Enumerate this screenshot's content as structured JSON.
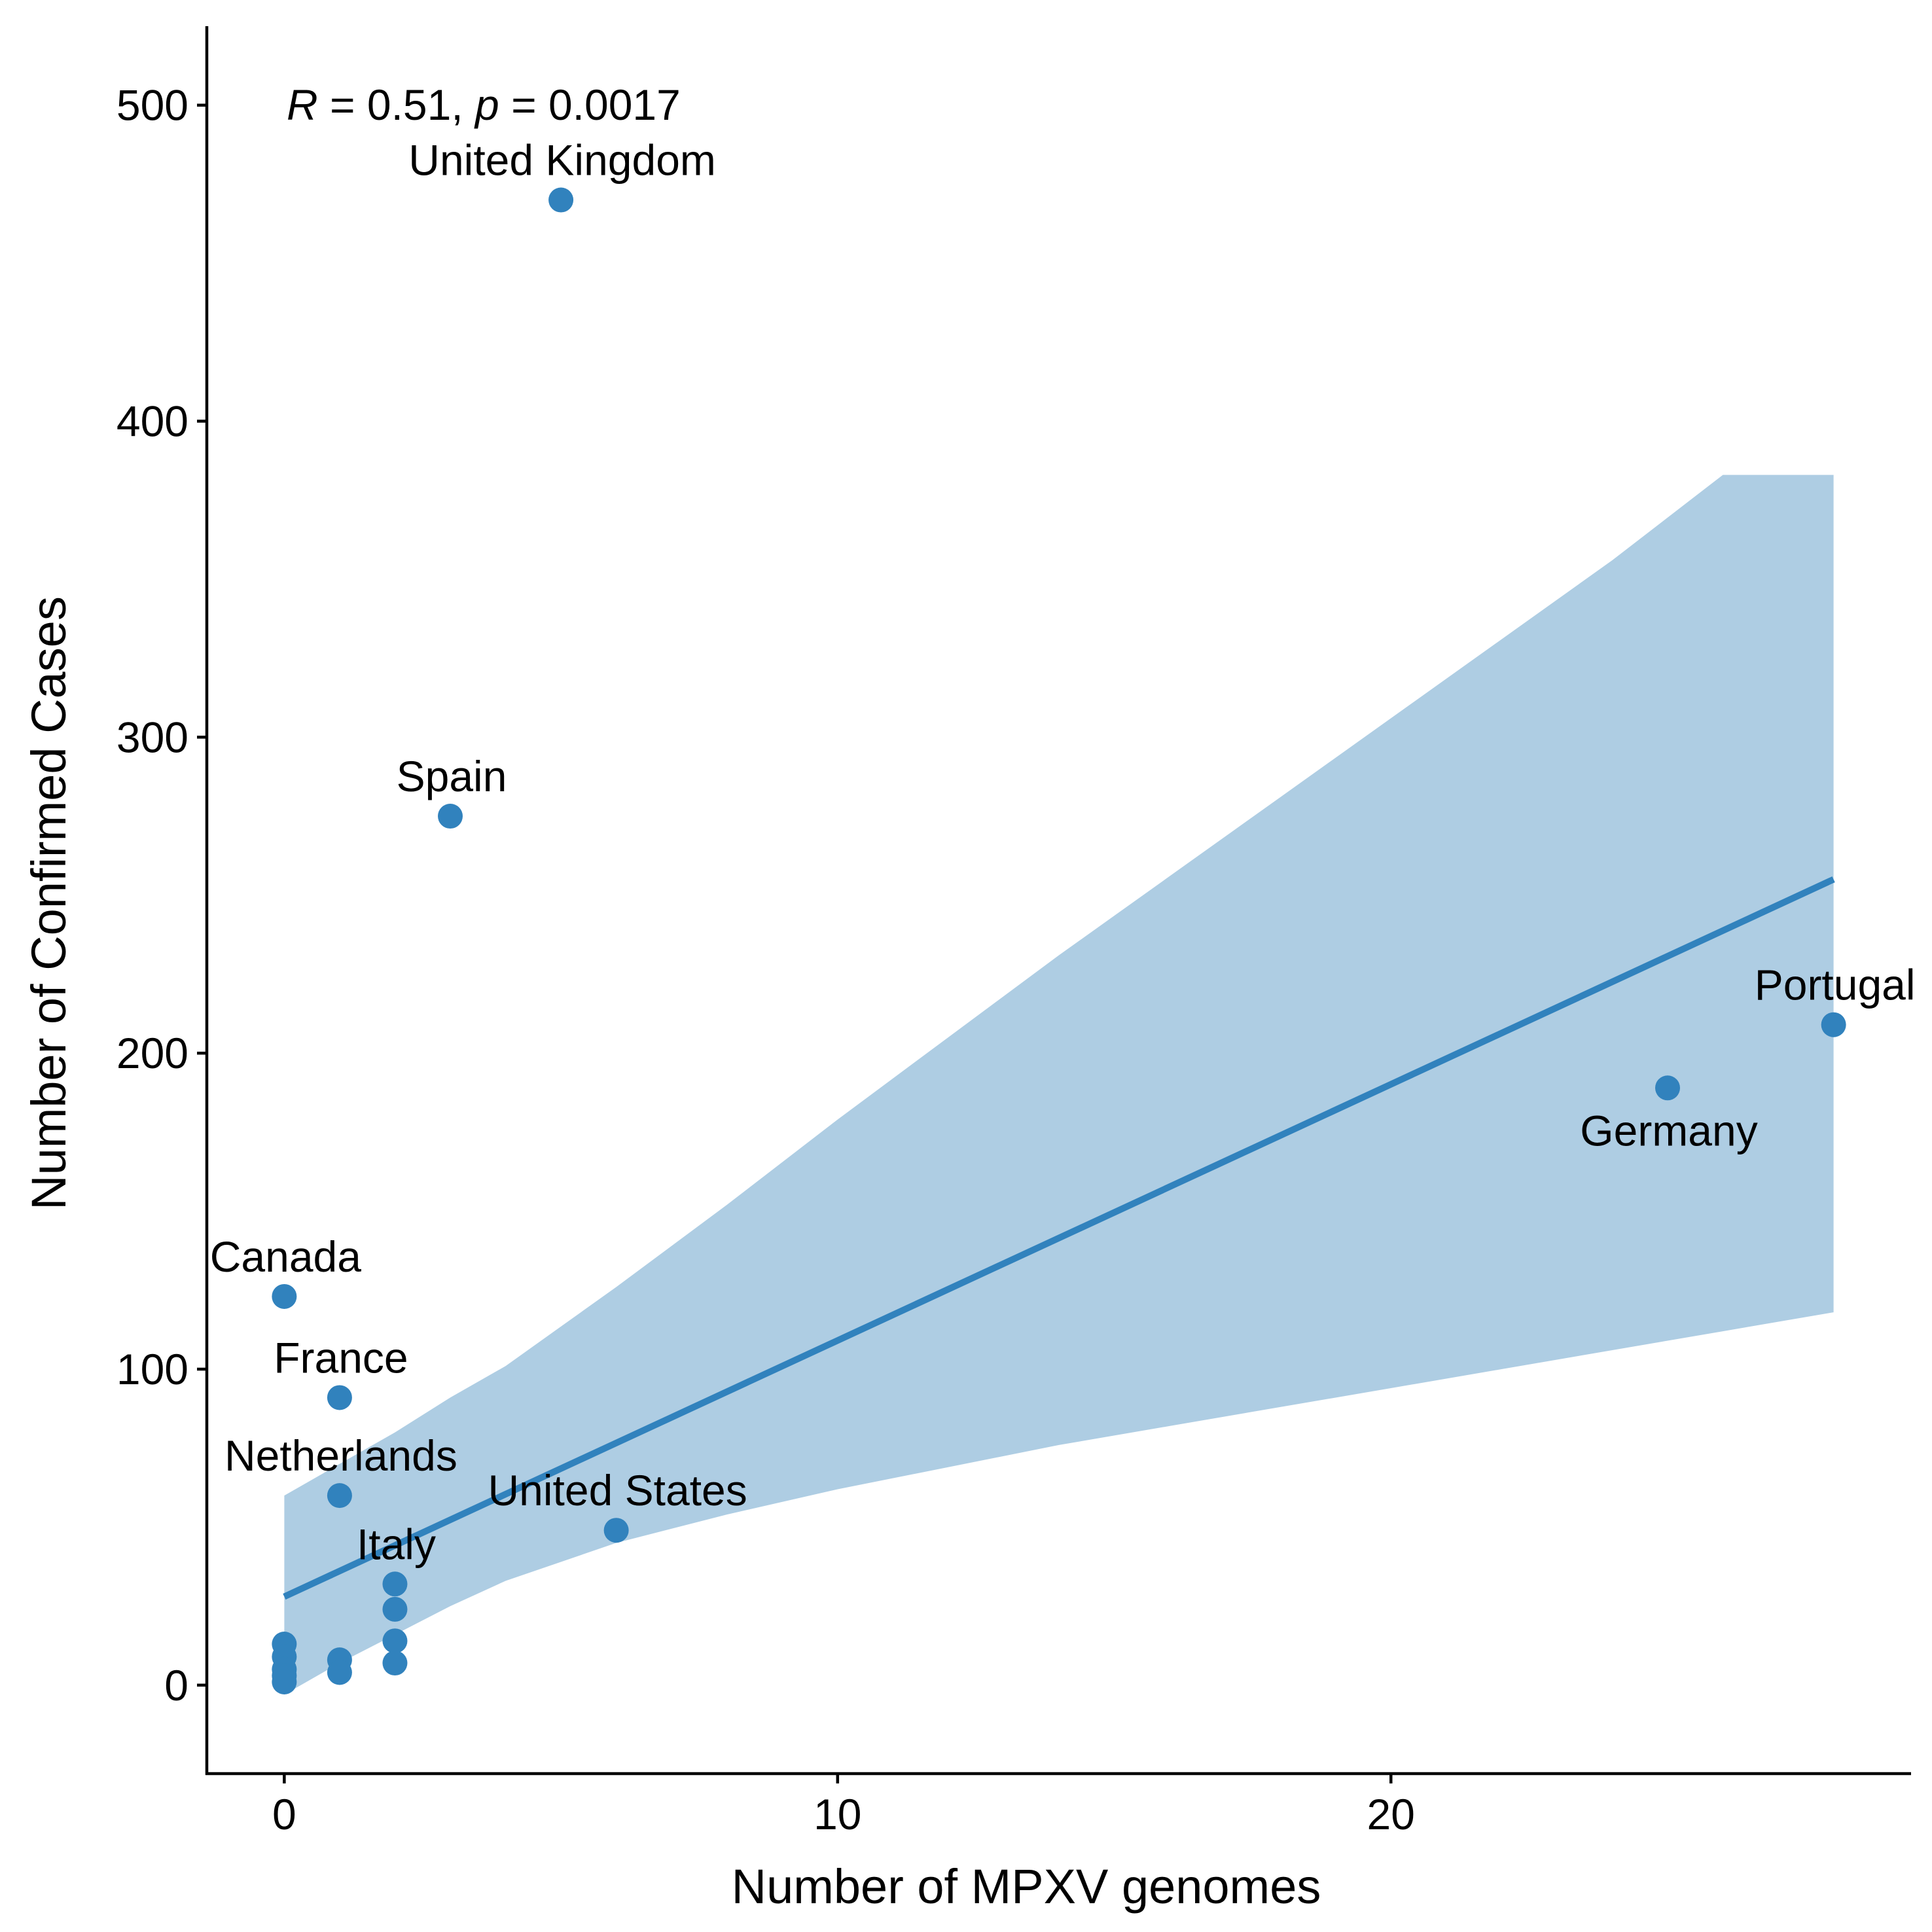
{
  "chart_data": {
    "type": "scatter",
    "title": "",
    "xlabel": "Number of MPXV genomes",
    "ylabel": "Number of Confirmed Cases",
    "xlim": [
      -1.4,
      29.4
    ],
    "ylim": [
      -28,
      525
    ],
    "x_ticks": [
      0,
      10,
      20
    ],
    "y_ticks": [
      0,
      100,
      200,
      300,
      400,
      500
    ],
    "grid": false,
    "annotation": {
      "r_symbol": "R",
      "r_text": " = 0.51, ",
      "p_symbol": "p",
      "p_text": " = 0.0017"
    },
    "points": [
      {
        "x": 5,
        "y": 470,
        "label": "United Kingdom",
        "label_pos": "above"
      },
      {
        "x": 3,
        "y": 275,
        "label": "Spain",
        "label_pos": "above"
      },
      {
        "x": 28,
        "y": 209,
        "label": "Portugal",
        "label_pos": "above"
      },
      {
        "x": 25,
        "y": 189,
        "label": "Germany",
        "label_pos": "below"
      },
      {
        "x": 0,
        "y": 123,
        "label": "Canada",
        "label_pos": "above"
      },
      {
        "x": 1,
        "y": 91,
        "label": "France",
        "label_pos": "above"
      },
      {
        "x": 1,
        "y": 60,
        "label": "Netherlands",
        "label_pos": "above"
      },
      {
        "x": 6,
        "y": 49,
        "label": "United States",
        "label_pos": "above"
      },
      {
        "x": 2,
        "y": 32,
        "label": "Italy",
        "label_pos": "above"
      },
      {
        "x": 2,
        "y": 24,
        "label": ""
      },
      {
        "x": 2,
        "y": 14,
        "label": ""
      },
      {
        "x": 2,
        "y": 7,
        "label": ""
      },
      {
        "x": 1,
        "y": 8,
        "label": ""
      },
      {
        "x": 1,
        "y": 4,
        "label": ""
      },
      {
        "x": 0,
        "y": 13,
        "label": ""
      },
      {
        "x": 0,
        "y": 9,
        "label": ""
      },
      {
        "x": 0,
        "y": 5,
        "label": ""
      },
      {
        "x": 0,
        "y": 3,
        "label": ""
      },
      {
        "x": 0,
        "y": 1,
        "label": ""
      }
    ],
    "regression": {
      "x": [
        0,
        28
      ],
      "y": [
        28,
        255
      ]
    },
    "confidence_band": {
      "x": [
        0,
        1,
        2,
        3,
        4,
        6,
        8,
        10,
        12,
        14,
        16,
        18,
        20,
        22,
        24,
        26,
        28
      ],
      "lower": [
        -3,
        7,
        16,
        25,
        33,
        45,
        54,
        62,
        69,
        76,
        82,
        88,
        94,
        100,
        106,
        112,
        118
      ],
      "upper": [
        60,
        70,
        80,
        91,
        101,
        126,
        152,
        179,
        205,
        231,
        256,
        281,
        306,
        331,
        356,
        383,
        383
      ]
    },
    "colors": {
      "point": "#3182bd",
      "line": "#3182bd",
      "band": "#aecde3"
    }
  }
}
